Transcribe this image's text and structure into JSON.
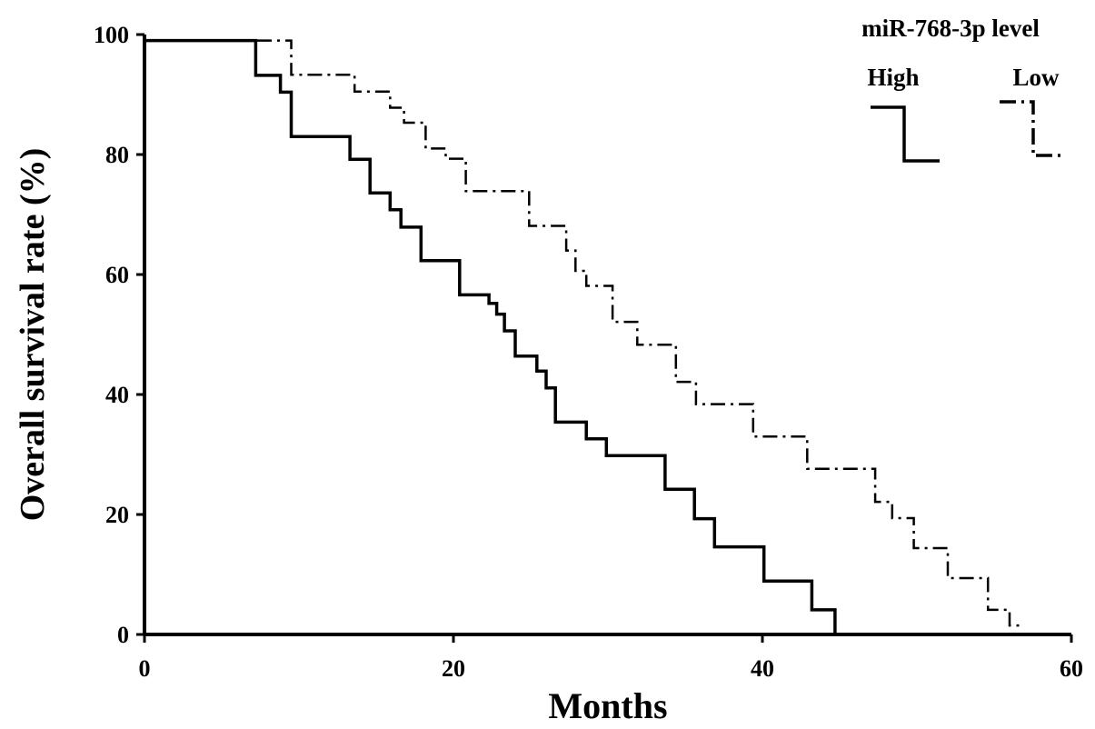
{
  "chart_data": {
    "type": "line",
    "subtype": "kaplan-meier-step",
    "xlabel": "Months",
    "ylabel": "Overall survival rate (%)",
    "xlim": [
      0,
      60
    ],
    "ylim": [
      0,
      100
    ],
    "xticks": [
      "0",
      "20",
      "40",
      "60"
    ],
    "yticks": [
      "0",
      "20",
      "40",
      "60",
      "80",
      "100"
    ],
    "legend": {
      "title": "miR-768-3p level",
      "placement": "top-right",
      "entries": [
        "High",
        "Low"
      ]
    },
    "series": [
      {
        "name": "High",
        "line_style": "solid",
        "color": "#000000",
        "points": [
          [
            0,
            99
          ],
          [
            7.2,
            99
          ],
          [
            7.2,
            93.2
          ],
          [
            8.8,
            93.2
          ],
          [
            8.8,
            90.4
          ],
          [
            9.5,
            90.4
          ],
          [
            9.5,
            83
          ],
          [
            13.3,
            83
          ],
          [
            13.3,
            79.2
          ],
          [
            14.6,
            79.2
          ],
          [
            14.6,
            73.6
          ],
          [
            15.9,
            73.6
          ],
          [
            15.9,
            70.8
          ],
          [
            16.6,
            70.8
          ],
          [
            16.6,
            67.9
          ],
          [
            17.9,
            67.9
          ],
          [
            17.9,
            62.3
          ],
          [
            20.4,
            62.3
          ],
          [
            20.4,
            56.6
          ],
          [
            22.3,
            56.6
          ],
          [
            22.3,
            55.2
          ],
          [
            22.8,
            55.2
          ],
          [
            22.8,
            53.4
          ],
          [
            23.3,
            53.4
          ],
          [
            23.3,
            50.6
          ],
          [
            24.0,
            50.6
          ],
          [
            24.0,
            46.4
          ],
          [
            25.4,
            46.4
          ],
          [
            25.4,
            43.9
          ],
          [
            26.0,
            43.9
          ],
          [
            26.0,
            41.1
          ],
          [
            26.6,
            41.1
          ],
          [
            26.6,
            35.4
          ],
          [
            28.6,
            35.4
          ],
          [
            28.6,
            32.6
          ],
          [
            29.9,
            32.6
          ],
          [
            29.9,
            29.8
          ],
          [
            33.7,
            29.8
          ],
          [
            33.7,
            24.2
          ],
          [
            35.6,
            24.2
          ],
          [
            35.6,
            19.3
          ],
          [
            36.9,
            19.3
          ],
          [
            36.9,
            14.6
          ],
          [
            40.1,
            14.6
          ],
          [
            40.1,
            8.9
          ],
          [
            43.2,
            8.9
          ],
          [
            43.2,
            4.1
          ],
          [
            44.7,
            4.1
          ],
          [
            44.7,
            0
          ]
        ]
      },
      {
        "name": "Low",
        "line_style": "dash-dot",
        "color": "#000000",
        "points": [
          [
            0,
            99
          ],
          [
            9.5,
            99
          ],
          [
            9.5,
            93.3
          ],
          [
            13.6,
            93.3
          ],
          [
            13.6,
            90.5
          ],
          [
            15.9,
            90.5
          ],
          [
            15.9,
            87.8
          ],
          [
            16.8,
            87.8
          ],
          [
            16.8,
            85.3
          ],
          [
            18.2,
            85.3
          ],
          [
            18.2,
            81
          ],
          [
            19.5,
            81
          ],
          [
            19.5,
            79.3
          ],
          [
            20.8,
            79.3
          ],
          [
            20.8,
            73.9
          ],
          [
            24.9,
            73.9
          ],
          [
            24.9,
            68.1
          ],
          [
            27.3,
            68.1
          ],
          [
            27.3,
            64
          ],
          [
            27.9,
            64
          ],
          [
            27.9,
            60.6
          ],
          [
            28.6,
            60.6
          ],
          [
            28.6,
            58.1
          ],
          [
            30.3,
            58.1
          ],
          [
            30.3,
            52.1
          ],
          [
            31.9,
            52.1
          ],
          [
            31.9,
            48.3
          ],
          [
            34.4,
            48.3
          ],
          [
            34.4,
            42.1
          ],
          [
            35.7,
            42.1
          ],
          [
            35.7,
            38.4
          ],
          [
            39.4,
            38.4
          ],
          [
            39.4,
            33
          ],
          [
            42.9,
            33
          ],
          [
            42.9,
            27.6
          ],
          [
            47.3,
            27.6
          ],
          [
            47.3,
            22.1
          ],
          [
            48.4,
            22.1
          ],
          [
            48.4,
            19.4
          ],
          [
            49.8,
            19.4
          ],
          [
            49.8,
            14.4
          ],
          [
            52.0,
            14.4
          ],
          [
            52.0,
            9.4
          ],
          [
            54.6,
            9.4
          ],
          [
            54.6,
            4.1
          ],
          [
            56.0,
            4.1
          ],
          [
            56.0,
            1.5
          ],
          [
            56.8,
            1.5
          ]
        ]
      }
    ]
  }
}
